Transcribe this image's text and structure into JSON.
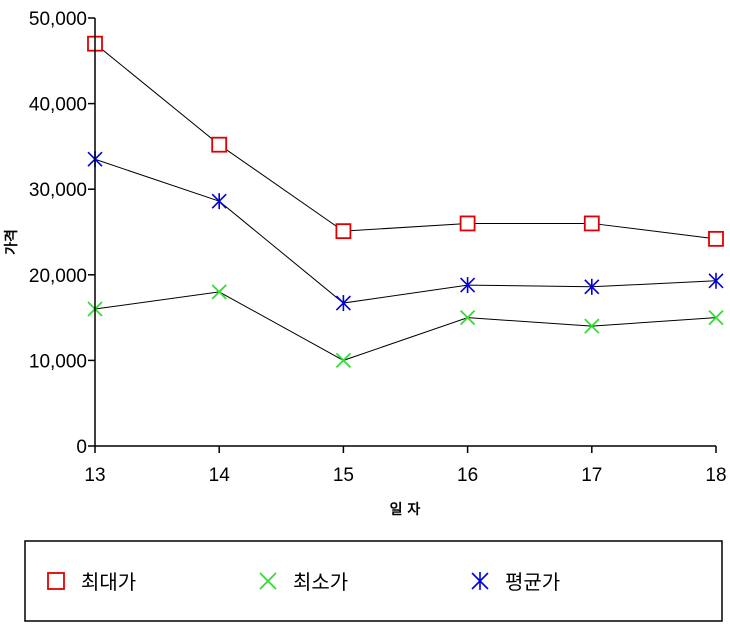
{
  "chart_data": {
    "type": "line",
    "title": "",
    "xlabel": "일 자",
    "ylabel": "가격",
    "categories": [
      "13",
      "14",
      "15",
      "16",
      "17",
      "18"
    ],
    "ylim": [
      0,
      50000
    ],
    "yticks": [
      "0",
      "10,000",
      "20,000",
      "30,000",
      "40,000",
      "50,000"
    ],
    "grid": false,
    "legend_position": "bottom",
    "series": [
      {
        "name": "최대가",
        "marker": "square",
        "color": "#e00000",
        "values": [
          47000,
          35200,
          25100,
          26000,
          26000,
          24200
        ]
      },
      {
        "name": "최소가",
        "marker": "x",
        "color": "#33dd33",
        "values": [
          16000,
          18000,
          10000,
          15000,
          14000,
          15000
        ]
      },
      {
        "name": "평균가",
        "marker": "asterisk",
        "color": "#0000dd",
        "values": [
          33500,
          28600,
          16700,
          18800,
          18600,
          19300
        ]
      }
    ]
  }
}
